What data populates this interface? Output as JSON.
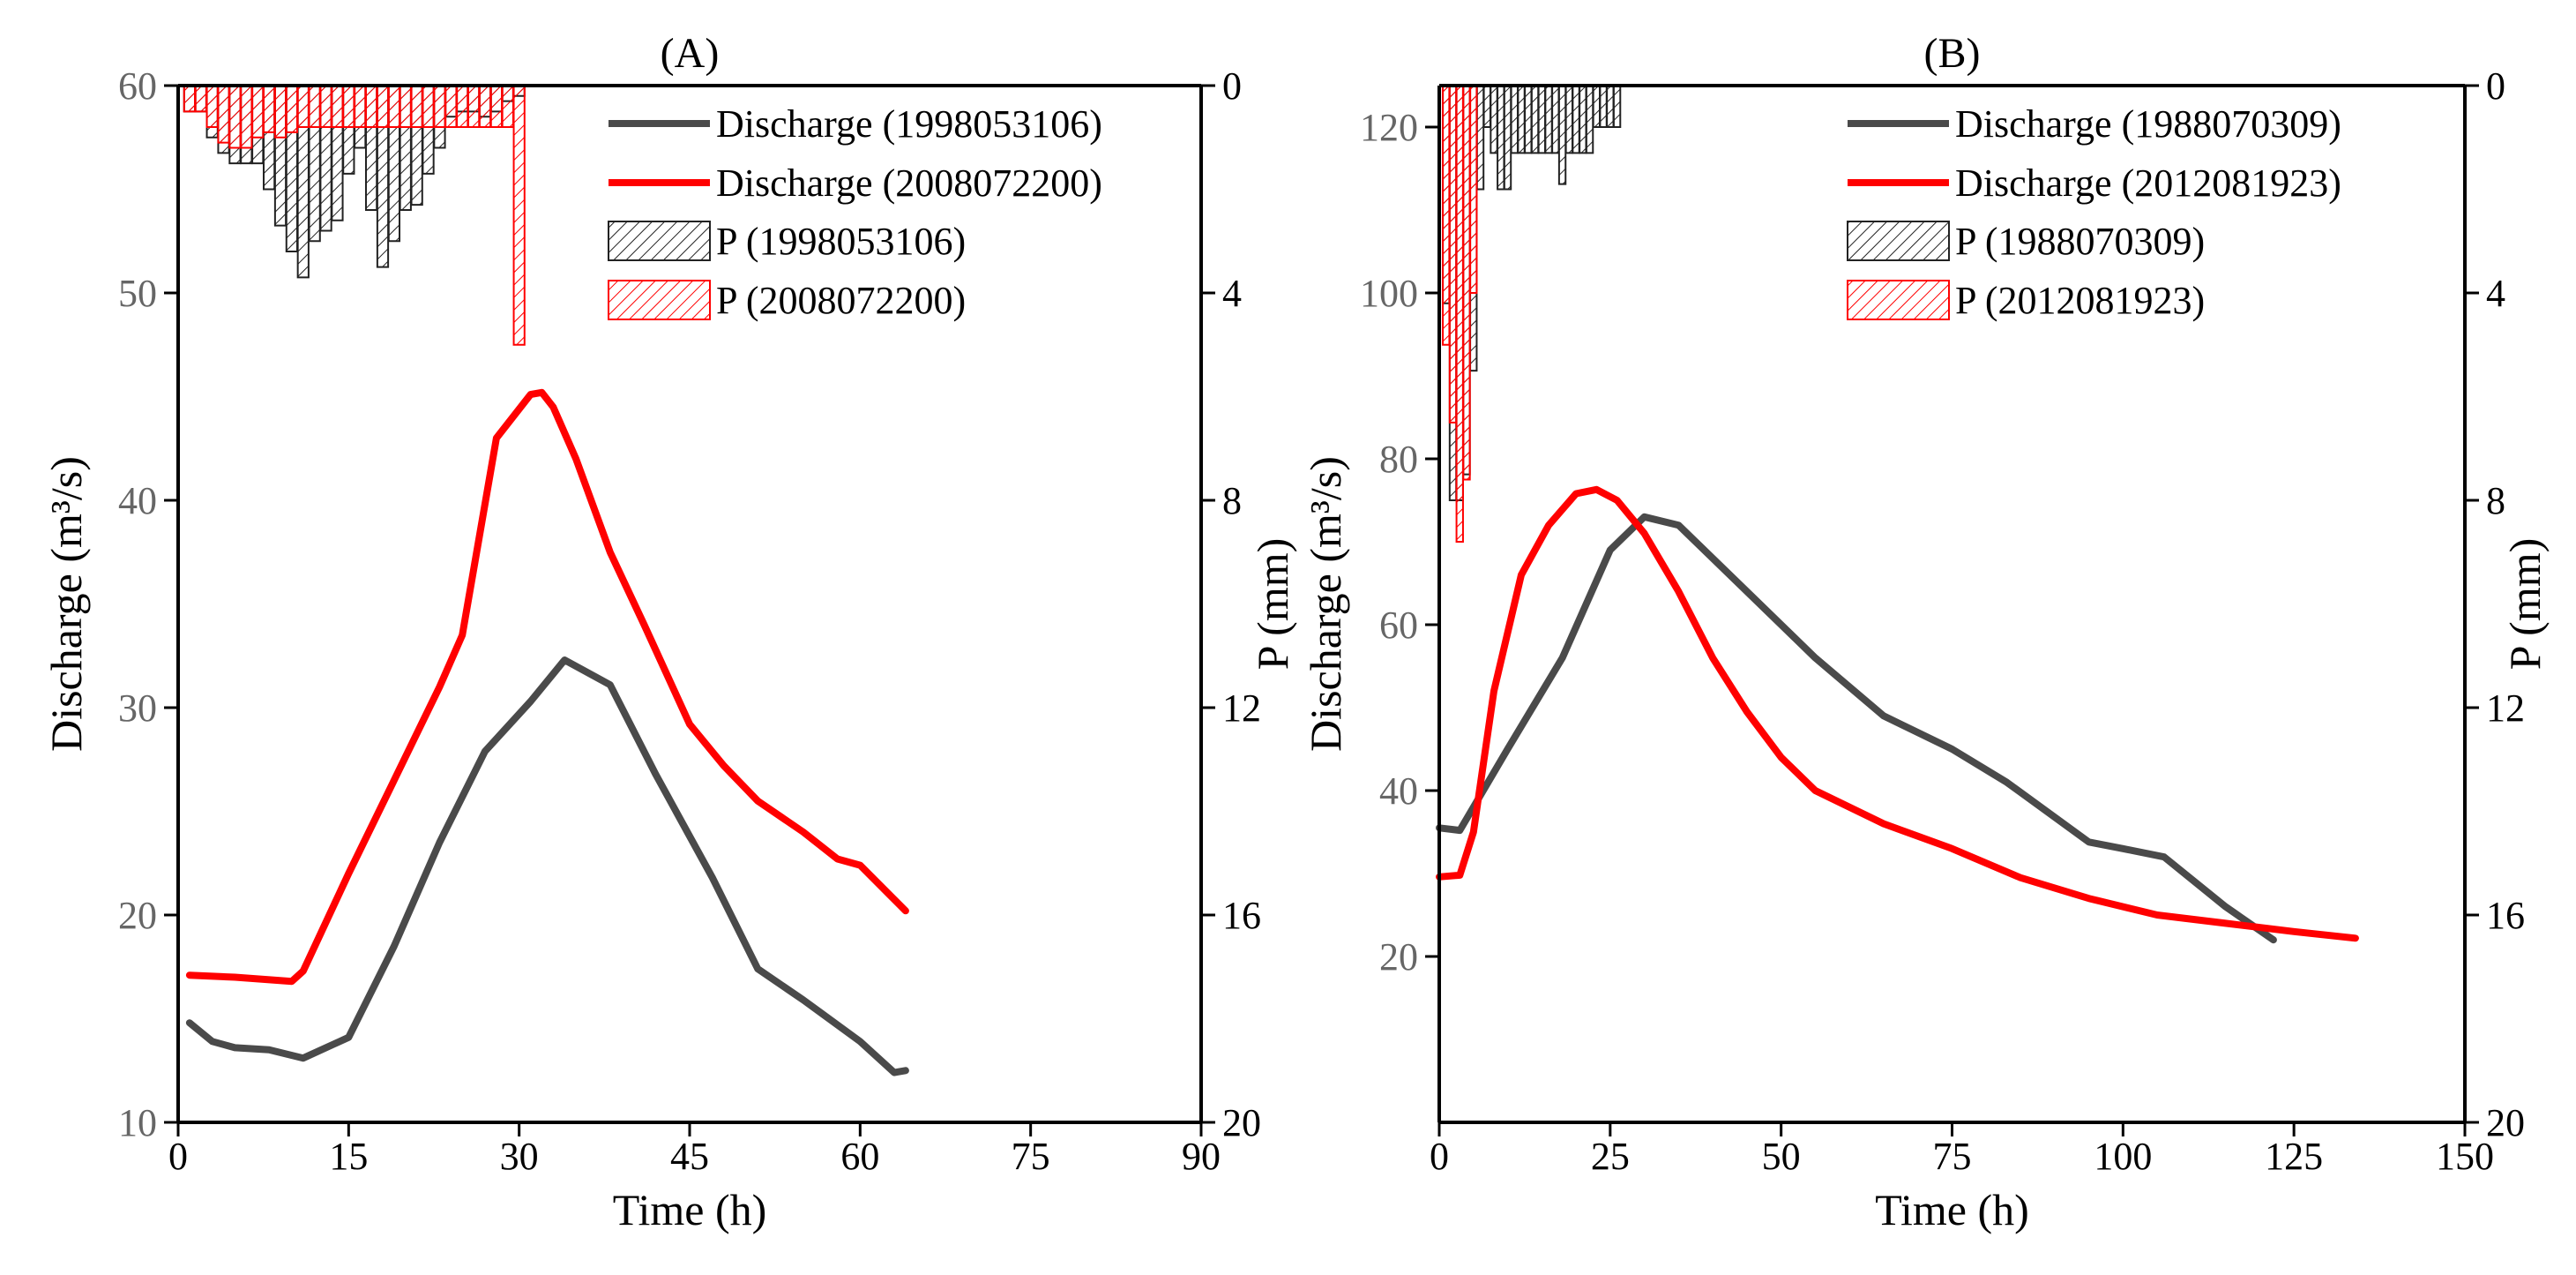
{
  "colors": {
    "black_series": "#4a4a4a",
    "red_series": "#ff0000",
    "axis": "#000000",
    "tick_text": "#666666"
  },
  "chart_data": [
    {
      "type": "line",
      "title": "(A)",
      "xlabel": "Time (h)",
      "ylabel_left": "Discharge (m³/s)",
      "ylabel_right": "P (mm)",
      "xlim": [
        0,
        90
      ],
      "ylim_left": [
        10,
        60
      ],
      "ylim_right": [
        0,
        20
      ],
      "right_axis_inverted": true,
      "xticks": [
        0,
        15,
        30,
        45,
        60,
        75,
        90
      ],
      "yticks_left": [
        10,
        20,
        30,
        40,
        50,
        60
      ],
      "yticks_right": [
        0,
        4,
        8,
        12,
        16,
        20
      ],
      "legend_position": "top-right",
      "legend": [
        {
          "label": "Discharge (1998053106)",
          "kind": "line",
          "series": "black"
        },
        {
          "label": "Discharge (2008072200)",
          "kind": "line",
          "series": "red"
        },
        {
          "label": "P (1998053106)",
          "kind": "bar",
          "series": "black"
        },
        {
          "label": "P (2008072200)",
          "kind": "bar",
          "series": "red"
        }
      ],
      "series": [
        {
          "name": "Discharge (1998053106)",
          "axis": "left",
          "color": "black",
          "x": [
            1,
            3,
            5,
            8,
            11,
            15,
            19,
            23,
            27,
            31,
            34,
            38,
            42,
            47,
            51,
            55,
            60,
            63,
            64
          ],
          "y": [
            14.8,
            13.9,
            13.6,
            13.5,
            13.1,
            14.1,
            18.5,
            23.5,
            27.9,
            30.3,
            32.3,
            31.1,
            26.8,
            21.8,
            17.4,
            15.9,
            13.9,
            12.4,
            12.5
          ]
        },
        {
          "name": "Discharge (2008072200)",
          "axis": "left",
          "color": "red",
          "x": [
            1,
            5,
            10,
            11,
            15,
            19,
            23,
            25,
            28,
            31,
            32,
            33,
            35,
            38,
            41,
            45,
            48,
            51,
            55,
            58,
            60,
            64
          ],
          "y": [
            17.1,
            17.0,
            16.8,
            17.3,
            22.0,
            26.5,
            31.0,
            33.5,
            43.0,
            45.1,
            45.2,
            44.5,
            42.0,
            37.5,
            34.0,
            29.2,
            27.2,
            25.5,
            24.0,
            22.7,
            22.4,
            20.2
          ]
        },
        {
          "name": "P (1998053106)",
          "axis": "right",
          "color": "black",
          "kind": "bar",
          "x": [
            1,
            2,
            3,
            4,
            5,
            6,
            7,
            8,
            9,
            10,
            11,
            12,
            13,
            14,
            15,
            16,
            17,
            18,
            19,
            20,
            21,
            22,
            23,
            24,
            25,
            26,
            27,
            28,
            29,
            30
          ],
          "y": [
            0.5,
            0.5,
            1.0,
            1.3,
            1.5,
            1.5,
            1.5,
            2.0,
            2.7,
            3.2,
            3.7,
            3.0,
            2.8,
            2.6,
            1.7,
            1.2,
            2.4,
            3.5,
            3.0,
            2.4,
            2.3,
            1.7,
            1.2,
            0.6,
            0.5,
            0.5,
            0.6,
            0.5,
            0.3,
            0.2
          ]
        },
        {
          "name": "P (2008072200)",
          "axis": "right",
          "color": "red",
          "kind": "bar",
          "x": [
            1,
            2,
            3,
            4,
            5,
            6,
            7,
            8,
            9,
            10,
            11,
            12,
            13,
            14,
            15,
            16,
            17,
            18,
            19,
            20,
            21,
            22,
            23,
            24,
            25,
            26,
            27,
            28,
            29,
            30
          ],
          "y": [
            0.5,
            0.5,
            0.8,
            1.1,
            1.2,
            1.2,
            1.0,
            0.9,
            1.0,
            0.9,
            0.8,
            0.8,
            0.8,
            0.8,
            0.8,
            0.8,
            0.8,
            0.8,
            0.8,
            0.8,
            0.8,
            0.8,
            0.8,
            0.8,
            0.8,
            0.8,
            0.8,
            0.8,
            0.8,
            5.0
          ]
        }
      ]
    },
    {
      "type": "line",
      "title": "(B)",
      "xlabel": "Time (h)",
      "ylabel_left": "Discharge (m³/s)",
      "ylabel_right": "P (mm)",
      "xlim": [
        0,
        150
      ],
      "ylim_left": [
        0,
        125
      ],
      "ylim_right": [
        0,
        20
      ],
      "right_axis_inverted": true,
      "xticks": [
        0,
        25,
        50,
        75,
        100,
        125,
        150
      ],
      "yticks_left": [
        20,
        40,
        60,
        80,
        100,
        120
      ],
      "yticks_right": [
        0,
        4,
        8,
        12,
        16,
        20
      ],
      "legend_position": "top-right",
      "legend": [
        {
          "label": "Discharge (1988070309)",
          "kind": "line",
          "series": "black"
        },
        {
          "label": "Discharge (2012081923)",
          "kind": "line",
          "series": "red"
        },
        {
          "label": "P (1988070309)",
          "kind": "bar",
          "series": "black"
        },
        {
          "label": "P (2012081923)",
          "kind": "bar",
          "series": "red"
        }
      ],
      "series": [
        {
          "name": "Discharge (1988070309)",
          "axis": "left",
          "color": "black",
          "x": [
            0,
            3,
            10,
            18,
            25,
            30,
            35,
            45,
            55,
            65,
            75,
            83,
            95,
            100,
            106,
            115,
            122
          ],
          "y": [
            35.5,
            35.2,
            45,
            56,
            69,
            73,
            72,
            64,
            56,
            49,
            45,
            41,
            33.8,
            33,
            32,
            26,
            22
          ]
        },
        {
          "name": "Discharge (2012081923)",
          "axis": "left",
          "color": "red",
          "x": [
            0,
            3,
            5,
            8,
            12,
            16,
            20,
            23,
            26,
            30,
            35,
            40,
            45,
            50,
            55,
            65,
            75,
            85,
            95,
            105,
            115,
            125,
            134
          ],
          "y": [
            29.6,
            29.8,
            35,
            52,
            66,
            72,
            75.8,
            76.3,
            75,
            71,
            64,
            56,
            49.5,
            44,
            40,
            36,
            33,
            29.5,
            27,
            25,
            24,
            23,
            22.2
          ]
        },
        {
          "name": "P (1988070309)",
          "axis": "right",
          "color": "black",
          "kind": "bar",
          "x": [
            1,
            2,
            3,
            4,
            5,
            6,
            7,
            8,
            9,
            10,
            11,
            12,
            13,
            14,
            15,
            16,
            17,
            18,
            19,
            20,
            21,
            22,
            23,
            24,
            25,
            26
          ],
          "y": [
            4.2,
            8.0,
            8.0,
            7.5,
            5.5,
            2.0,
            0.8,
            1.3,
            2.0,
            2.0,
            1.3,
            1.3,
            1.3,
            1.3,
            1.3,
            1.3,
            1.3,
            1.9,
            1.3,
            1.3,
            1.3,
            1.3,
            0.8,
            0.8,
            0.8,
            0.8
          ]
        },
        {
          "name": "P (2012081923)",
          "axis": "right",
          "color": "red",
          "kind": "bar",
          "x": [
            1,
            2,
            3,
            4,
            5
          ],
          "y": [
            5.0,
            6.5,
            8.8,
            7.6,
            4.0
          ]
        }
      ]
    }
  ]
}
